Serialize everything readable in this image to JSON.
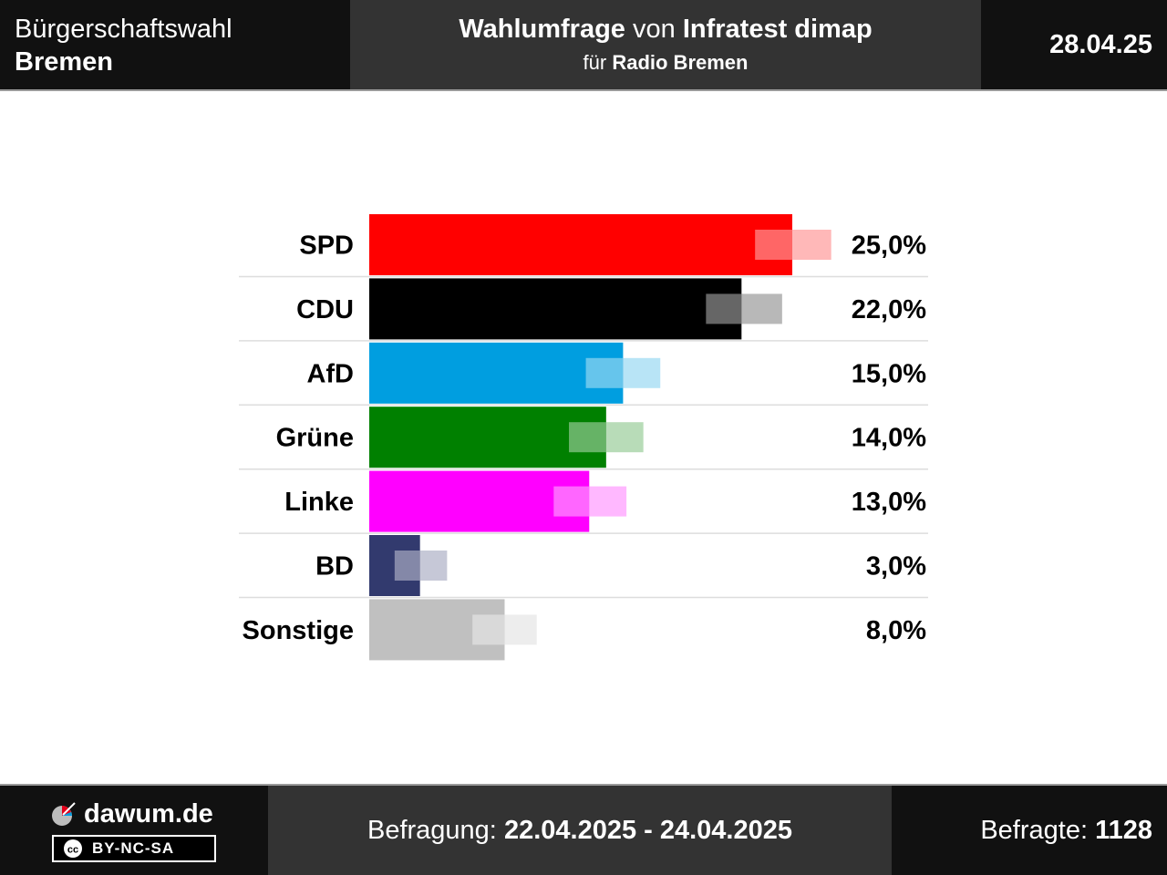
{
  "header": {
    "election_type": "Bürgerschaftswahl",
    "region": "Bremen",
    "poll_word": "Wahlumfrage",
    "von_word": "von",
    "institute": "Infratest dimap",
    "fuer_word": "für",
    "client": "Radio Bremen",
    "date": "28.04.25"
  },
  "footer": {
    "brand": "dawum.de",
    "license": "BY-NC-SA",
    "survey_label": "Befragung:",
    "survey_period": "22.04.2025 - 24.04.2025",
    "respondents_label": "Befragte:",
    "respondents": "1128",
    "icons": [
      "dawum-logo-icon",
      "creative-commons-icon"
    ]
  },
  "chart_data": {
    "type": "bar",
    "orientation": "horizontal",
    "categories": [
      "SPD",
      "CDU",
      "AfD",
      "Grüne",
      "Linke",
      "BD",
      "Sonstige"
    ],
    "values": [
      25.0,
      22.0,
      15.0,
      14.0,
      13.0,
      3.0,
      8.0
    ],
    "value_labels": [
      "25,0%",
      "22,0%",
      "15,0%",
      "14,0%",
      "13,0%",
      "3,0%",
      "8,0%"
    ],
    "range_low": [
      22.8,
      19.9,
      12.8,
      11.8,
      10.9,
      1.5,
      6.1
    ],
    "range_high": [
      27.3,
      24.4,
      17.2,
      16.2,
      15.2,
      4.6,
      9.9
    ],
    "colors": [
      "#ff0000",
      "#000000",
      "#009ee0",
      "#008000",
      "#ff00ff",
      "#323a6e",
      "#c0c0c0"
    ],
    "grid": false
  }
}
